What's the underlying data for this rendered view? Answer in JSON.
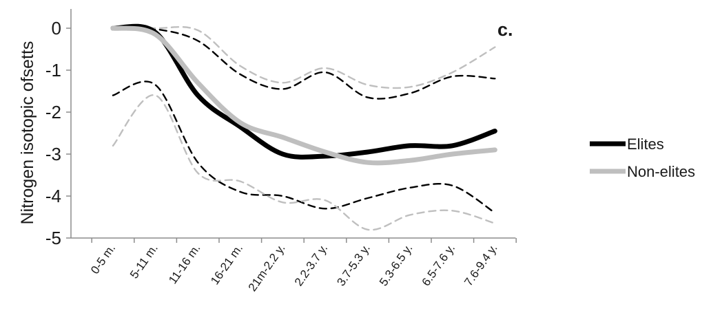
{
  "chart_data": {
    "type": "line",
    "title": "",
    "panel_label": "c.",
    "xlabel": "",
    "ylabel": "Nitrogen isotopic ofsetts",
    "ylim": [
      -5,
      0
    ],
    "yticks": [
      0,
      -1,
      -2,
      -3,
      -4,
      -5
    ],
    "grid": false,
    "legend_position": "right",
    "categories": [
      "0-5 m.",
      "5-11 m.",
      "11-16 m.",
      "16-21 m.",
      "21m-2.2 y.",
      "2.2-3.7 y.",
      "3.7-5.3 y.",
      "5.3-6.5 y.",
      "6.5-7.6 y.",
      "7.6-9.4 y."
    ],
    "series": [
      {
        "name": "Elites",
        "role": "mean",
        "color": "#000000",
        "values": [
          0,
          -0.1,
          -1.6,
          -2.35,
          -3.0,
          -3.05,
          -2.95,
          -2.8,
          -2.8,
          -2.45
        ]
      },
      {
        "name": "Non-elites",
        "role": "mean",
        "color": "#bfbfbf",
        "values": [
          0,
          -0.15,
          -1.3,
          -2.25,
          -2.6,
          -2.95,
          -3.2,
          -3.15,
          -3.0,
          -2.9
        ]
      },
      {
        "role": "upper-bound",
        "group": "Elites",
        "color": "#000000",
        "values": [
          0,
          -0.02,
          -0.3,
          -1.1,
          -1.45,
          -1.05,
          -1.65,
          -1.55,
          -1.15,
          -1.2
        ]
      },
      {
        "role": "lower-bound",
        "group": "Elites",
        "color": "#000000",
        "values": [
          -1.6,
          -1.35,
          -3.2,
          -3.9,
          -4.0,
          -4.3,
          -4.05,
          -3.8,
          -3.75,
          -4.4
        ]
      },
      {
        "role": "upper-bound",
        "group": "Non-elites",
        "color": "#bfbfbf",
        "values": [
          0,
          0,
          -0.05,
          -0.9,
          -1.3,
          -0.95,
          -1.35,
          -1.4,
          -1.05,
          -0.45
        ]
      },
      {
        "role": "lower-bound",
        "group": "Non-elites",
        "color": "#bfbfbf",
        "values": [
          -2.8,
          -1.6,
          -3.45,
          -3.65,
          -4.15,
          -4.1,
          -4.8,
          -4.45,
          -4.35,
          -4.65
        ]
      }
    ]
  }
}
